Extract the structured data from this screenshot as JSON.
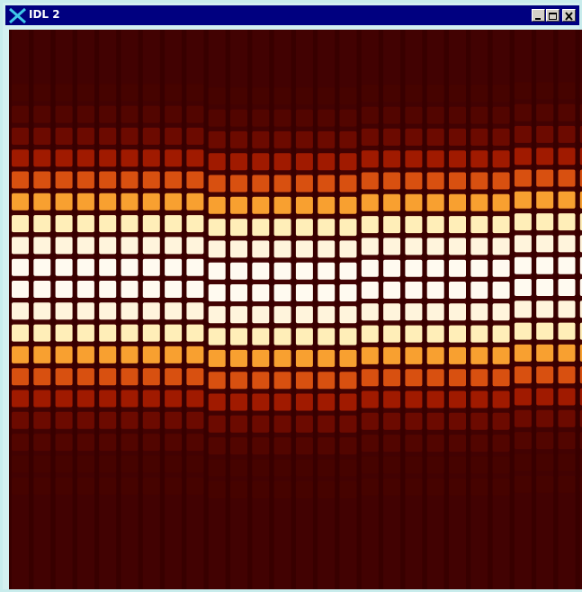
{
  "window": {
    "title": "IDL 2"
  }
}
